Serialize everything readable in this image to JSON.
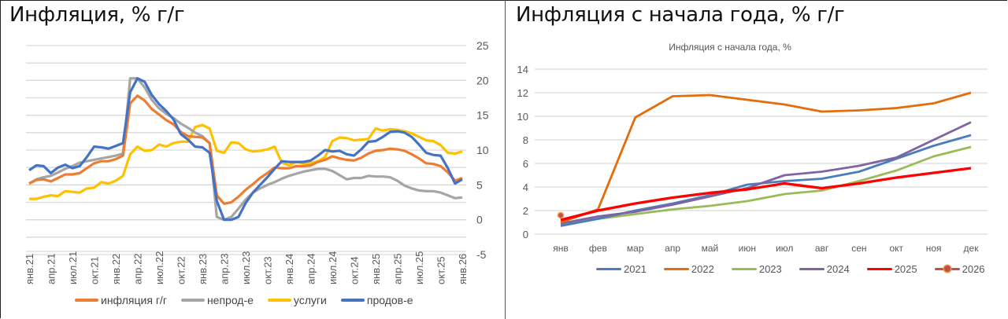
{
  "left_panel": {
    "title": "Инфляция, % г/г",
    "legend": [
      {
        "label": "инфляция г/г",
        "color": "#ed7d31"
      },
      {
        "label": "непрод-е",
        "color": "#a5a5a5"
      },
      {
        "label": "услуги",
        "color": "#ffc000"
      },
      {
        "label": "продов-е",
        "color": "#4472c4"
      }
    ]
  },
  "right_panel": {
    "title": "Инфляция с начала года, % г/г",
    "chart_title": "Инфляция с начала года, %",
    "legend": [
      {
        "label": "2021",
        "color": "#4a7ebb"
      },
      {
        "label": "2022",
        "color": "#e46c0a"
      },
      {
        "label": "2023",
        "color": "#9bbb59"
      },
      {
        "label": "2024",
        "color": "#8064a2"
      },
      {
        "label": "2025",
        "color": "#ff0000"
      },
      {
        "label": "2026",
        "color": "#c0504d"
      }
    ]
  },
  "chart_data": [
    {
      "type": "line",
      "title": "Инфляция, % г/г",
      "xlabel": "",
      "ylabel": "",
      "ylim": [
        -5,
        25
      ],
      "y_ticks": [
        -5,
        0,
        5,
        10,
        15,
        20,
        25
      ],
      "y_axis_position": "right",
      "grid": true,
      "legend_position": "bottom",
      "x_tick_labels": [
        "янв.21",
        "апр.21",
        "июл.21",
        "окт.21",
        "янв.22",
        "апр.22",
        "июл.22",
        "окт.22",
        "янв.23",
        "апр.23",
        "июл.23",
        "окт.23",
        "янв.24",
        "апр.24",
        "июл.24",
        "окт.24",
        "янв.25",
        "апр.25",
        "июл.25",
        "окт.25",
        "янв.26"
      ],
      "x_start": "янв.21",
      "x_end": "янв.26",
      "frequency": "monthly",
      "series": [
        {
          "name": "инфляция г/г",
          "color": "#ed7d31",
          "values": [
            5.2,
            5.7,
            5.8,
            5.5,
            6.0,
            6.5,
            6.5,
            6.7,
            7.4,
            8.1,
            8.4,
            8.4,
            8.7,
            9.2,
            16.7,
            17.8,
            17.1,
            15.9,
            15.1,
            14.3,
            13.7,
            12.6,
            12.0,
            11.9,
            11.8,
            11.0,
            3.5,
            2.3,
            2.5,
            3.3,
            4.3,
            5.1,
            6.0,
            6.7,
            7.5,
            7.4,
            7.4,
            7.7,
            7.7,
            7.8,
            8.3,
            8.6,
            9.1,
            8.8,
            8.6,
            8.5,
            8.9,
            9.5,
            9.9,
            10.0,
            10.2,
            10.1,
            9.9,
            9.4,
            8.8,
            8.1,
            8.0,
            7.7,
            6.8,
            5.6,
            6.0
          ]
        },
        {
          "name": "непрод-е",
          "color": "#a5a5a5",
          "values": [
            5.2,
            5.8,
            6.1,
            6.3,
            6.8,
            7.3,
            7.7,
            8.2,
            8.4,
            8.6,
            8.8,
            9.0,
            9.2,
            9.5,
            20.3,
            20.3,
            19.0,
            17.2,
            16.0,
            15.2,
            14.6,
            13.8,
            13.2,
            12.5,
            12.0,
            11.0,
            0.4,
            0.0,
            0.4,
            1.6,
            2.9,
            3.9,
            4.5,
            5.0,
            5.4,
            5.9,
            6.3,
            6.6,
            6.9,
            7.1,
            7.3,
            7.3,
            7.0,
            6.4,
            5.8,
            6.0,
            6.0,
            6.3,
            6.2,
            6.2,
            6.1,
            5.6,
            4.9,
            4.5,
            4.2,
            4.1,
            4.1,
            3.9,
            3.5,
            3.1,
            3.2
          ]
        },
        {
          "name": "услуги",
          "color": "#ffc000",
          "values": [
            3.0,
            3.0,
            3.3,
            3.5,
            3.4,
            4.1,
            4.0,
            3.9,
            4.5,
            4.6,
            5.4,
            5.2,
            5.6,
            6.3,
            9.4,
            10.5,
            9.9,
            10.0,
            10.8,
            10.5,
            11.0,
            11.2,
            11.2,
            13.3,
            13.6,
            13.1,
            9.9,
            9.6,
            11.1,
            11.0,
            10.1,
            9.8,
            9.9,
            10.1,
            10.5,
            8.2,
            7.8,
            8.3,
            8.1,
            8.1,
            8.4,
            9.0,
            11.3,
            11.8,
            11.7,
            11.4,
            11.5,
            11.6,
            13.1,
            12.8,
            13.0,
            12.9,
            12.7,
            12.4,
            11.9,
            11.4,
            11.3,
            10.7,
            9.6,
            9.5,
            9.8
          ]
        },
        {
          "name": "продов-е",
          "color": "#4472c4",
          "values": [
            7.1,
            7.8,
            7.7,
            6.7,
            7.5,
            7.9,
            7.4,
            7.7,
            9.0,
            10.5,
            10.4,
            10.2,
            10.6,
            11.0,
            18.3,
            20.3,
            19.8,
            17.9,
            16.6,
            15.6,
            14.4,
            12.3,
            11.5,
            10.5,
            10.4,
            9.6,
            2.7,
            0.0,
            0.0,
            0.4,
            2.4,
            3.9,
            5.0,
            6.1,
            7.3,
            8.4,
            8.3,
            8.3,
            8.3,
            8.5,
            9.2,
            10.0,
            9.8,
            9.9,
            9.4,
            9.2,
            10.1,
            11.2,
            11.3,
            11.9,
            12.6,
            12.7,
            12.5,
            11.9,
            10.8,
            9.6,
            9.3,
            9.2,
            7.4,
            5.2,
            5.8
          ]
        }
      ]
    },
    {
      "type": "line",
      "title": "Инфляция с начала года, %",
      "xlabel": "",
      "ylabel": "",
      "ylim": [
        0,
        14
      ],
      "y_ticks": [
        0,
        2,
        4,
        6,
        8,
        10,
        12,
        14
      ],
      "y_axis_position": "left",
      "grid": true,
      "legend_position": "bottom",
      "categories": [
        "янв",
        "фев",
        "мар",
        "апр",
        "май",
        "июн",
        "июл",
        "авг",
        "сен",
        "окт",
        "ноя",
        "дек"
      ],
      "series": [
        {
          "name": "2021",
          "color": "#4a7ebb",
          "values": [
            0.7,
            1.3,
            2.0,
            2.6,
            3.3,
            4.2,
            4.5,
            4.7,
            5.3,
            6.4,
            7.5,
            8.4
          ]
        },
        {
          "name": "2022",
          "color": "#e46c0a",
          "values": [
            1.0,
            2.1,
            9.9,
            11.7,
            11.8,
            11.4,
            11.0,
            10.4,
            10.5,
            10.7,
            11.1,
            12.0
          ]
        },
        {
          "name": "2023",
          "color": "#9bbb59",
          "values": [
            0.8,
            1.3,
            1.7,
            2.1,
            2.4,
            2.8,
            3.4,
            3.7,
            4.5,
            5.4,
            6.6,
            7.4
          ]
        },
        {
          "name": "2024",
          "color": "#8064a2",
          "values": [
            0.9,
            1.5,
            1.9,
            2.5,
            3.2,
            3.9,
            5.0,
            5.3,
            5.8,
            6.5,
            8.0,
            9.5
          ]
        },
        {
          "name": "2025",
          "color": "#ff0000",
          "values": [
            1.2,
            2.0,
            2.6,
            3.1,
            3.5,
            3.8,
            4.3,
            3.9,
            4.3,
            4.8,
            5.2,
            5.6
          ]
        },
        {
          "name": "2026",
          "color": "#c0504d",
          "marker": "circle",
          "values": [
            1.6
          ]
        }
      ]
    }
  ]
}
